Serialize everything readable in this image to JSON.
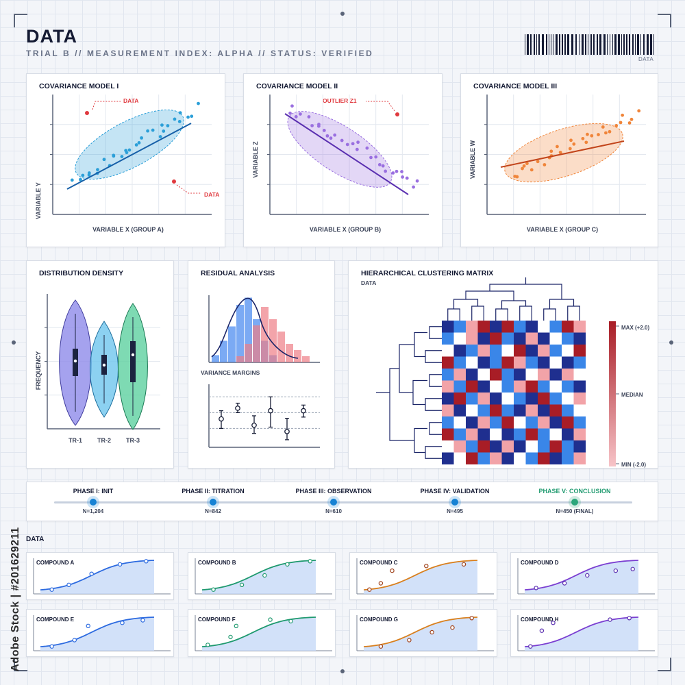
{
  "header": {
    "title": "DATA",
    "subtitle": "TRIAL B // MEASUREMENT INDEX: ALPHA // STATUS: VERIFIED",
    "barcode_label": "DATA"
  },
  "colors": {
    "blue": "#2b9fd8",
    "purple": "#7a4fc2",
    "orange": "#f0853a",
    "red": "#e0393e",
    "green": "#2aa67a",
    "navy": "#1a2467",
    "dark_red": "#a81d26"
  },
  "covariance_panels": [
    {
      "title": "COVARIANCE MODEL I",
      "chart_data": {
        "type": "scatter",
        "xlabel": "VARIABLE X (GROUP A)",
        "ylabel": "VARIABLE Y",
        "trend": "increasing",
        "annotations": [
          "DATA",
          "DATA"
        ]
      }
    },
    {
      "title": "COVARIANCE MODEL II",
      "chart_data": {
        "type": "scatter",
        "xlabel": "VARIABLE X (GROUP B)",
        "ylabel": "VARIABLE Z",
        "trend": "decreasing",
        "annotations": [
          "OUTLIER Z1"
        ]
      }
    },
    {
      "title": "COVARIANCE MODEL III",
      "chart_data": {
        "type": "scatter",
        "xlabel": "VARIABLE X (GROUP C)",
        "ylabel": "VARIABLE W",
        "trend": "increasing (weak)",
        "annotations": []
      }
    }
  ],
  "density_panel": {
    "title": "DISTRIBUTION DENSITY",
    "chart_data": {
      "type": "violin",
      "ylabel": "FREQUENCY",
      "categories": [
        "TR-1",
        "TR-2",
        "TR-3"
      ]
    }
  },
  "residual_panel": {
    "title": "RESIDUAL ANALYSIS",
    "subtitle": "VARIANCE MARGINS",
    "chart_data": {
      "type": "bar",
      "series": [
        {
          "color": "blue",
          "values": [
            1,
            3,
            5,
            8,
            9,
            6,
            3,
            1
          ]
        },
        {
          "color": "red",
          "values": [
            1,
            3,
            6,
            9,
            7,
            5,
            3,
            2,
            1
          ]
        }
      ],
      "error_bars": [
        {
          "mean": 0.45,
          "low": 0.3,
          "high": 0.58
        },
        {
          "mean": 0.62,
          "low": 0.55,
          "high": 0.7
        },
        {
          "mean": 0.35,
          "low": 0.22,
          "high": 0.5
        },
        {
          "mean": 0.58,
          "low": 0.32,
          "high": 0.8
        },
        {
          "mean": 0.25,
          "low": 0.12,
          "high": 0.46
        },
        {
          "mean": 0.58,
          "low": 0.48,
          "high": 0.67
        }
      ]
    }
  },
  "clustering_panel": {
    "title": "HIERARCHICAL CLUSTERING MATRIX",
    "subtitle": "DATA",
    "scale": {
      "max": "MAX (+2.0)",
      "median": "MEDIAN",
      "min": "MIN (-2.0)"
    },
    "chart_data": {
      "type": "heatmap",
      "rows": 12,
      "cols": 12,
      "range": [
        -2.0,
        2.0
      ],
      "values": [
        [
          -2,
          -1,
          1,
          2,
          -2,
          2,
          -1,
          -2,
          0,
          -1,
          2,
          1
        ],
        [
          -1,
          0,
          1,
          -2,
          2,
          -1,
          -2,
          1,
          -2,
          0,
          -1,
          -2
        ],
        [
          0,
          -2,
          -1,
          1,
          -1,
          0,
          2,
          -2,
          1,
          -1,
          0,
          2
        ],
        [
          2,
          -1,
          0,
          -2,
          -1,
          2,
          1,
          -1,
          -2,
          0,
          -2,
          -1
        ],
        [
          -1,
          1,
          -2,
          0,
          2,
          -1,
          -2,
          0,
          1,
          -2,
          1,
          0
        ],
        [
          1,
          -1,
          2,
          -2,
          0,
          -1,
          1,
          2,
          -1,
          0,
          -1,
          -2
        ],
        [
          -2,
          2,
          -1,
          1,
          -2,
          0,
          -1,
          -2,
          2,
          -1,
          0,
          1
        ],
        [
          1,
          -2,
          0,
          -1,
          2,
          -1,
          -2,
          1,
          -2,
          2,
          -1,
          0
        ],
        [
          -1,
          0,
          -2,
          1,
          -1,
          2,
          0,
          -1,
          1,
          -2,
          2,
          -1
        ],
        [
          2,
          -1,
          1,
          -2,
          0,
          -2,
          -1,
          2,
          -1,
          0,
          -2,
          1
        ],
        [
          0,
          1,
          -1,
          2,
          -2,
          1,
          -2,
          0,
          -1,
          2,
          -1,
          -2
        ],
        [
          -2,
          0,
          2,
          -1,
          1,
          -2,
          0,
          -1,
          2,
          -2,
          -1,
          1
        ]
      ]
    }
  },
  "phases": [
    {
      "label": "PHASE I: INIT",
      "count": "N=1,204"
    },
    {
      "label": "PHASE II: TITRATION",
      "count": "N=842"
    },
    {
      "label": "PHASE III: OBSERVATION",
      "count": "N=610"
    },
    {
      "label": "PHASE IV: VALIDATION",
      "count": "N=495"
    },
    {
      "label": "PHASE V: CONCLUSION",
      "count": "N=450 (FINAL)"
    }
  ],
  "compounds_section": {
    "label": "DATA",
    "compounds": [
      {
        "name": "COMPOUND A",
        "color": "blue",
        "points": [
          [
            0.1,
            0.05
          ],
          [
            0.25,
            0.2
          ],
          [
            0.45,
            0.55
          ],
          [
            0.7,
            0.85
          ],
          [
            0.93,
            0.95
          ]
        ]
      },
      {
        "name": "COMPOUND B",
        "color": "green",
        "points": [
          [
            0.1,
            0.05
          ],
          [
            0.35,
            0.2
          ],
          [
            0.55,
            0.5
          ],
          [
            0.75,
            0.85
          ],
          [
            0.95,
            0.95
          ]
        ]
      },
      {
        "name": "COMPOUND C",
        "color": "orange",
        "points": [
          [
            0.05,
            0.05
          ],
          [
            0.15,
            0.25
          ],
          [
            0.25,
            0.65
          ],
          [
            0.55,
            0.8
          ],
          [
            0.88,
            0.85
          ]
        ]
      },
      {
        "name": "COMPOUND D",
        "color": "purple",
        "points": [
          [
            0.1,
            0.1
          ],
          [
            0.35,
            0.25
          ],
          [
            0.55,
            0.5
          ],
          [
            0.8,
            0.65
          ],
          [
            0.95,
            0.7
          ]
        ]
      },
      {
        "name": "COMPOUND E",
        "color": "blue",
        "points": [
          [
            0.1,
            0.05
          ],
          [
            0.3,
            0.25
          ],
          [
            0.42,
            0.7
          ],
          [
            0.72,
            0.8
          ],
          [
            0.9,
            0.88
          ]
        ]
      },
      {
        "name": "COMPOUND F",
        "color": "green",
        "points": [
          [
            0.05,
            0.1
          ],
          [
            0.25,
            0.35
          ],
          [
            0.6,
            0.9
          ],
          [
            0.78,
            0.85
          ],
          [
            0.3,
            0.7
          ]
        ]
      },
      {
        "name": "COMPOUND G",
        "color": "orange",
        "points": [
          [
            0.15,
            0.05
          ],
          [
            0.4,
            0.25
          ],
          [
            0.6,
            0.5
          ],
          [
            0.78,
            0.65
          ],
          [
            0.95,
            0.95
          ]
        ]
      },
      {
        "name": "COMPOUND H",
        "color": "purple",
        "points": [
          [
            0.05,
            0.05
          ],
          [
            0.15,
            0.55
          ],
          [
            0.25,
            0.8
          ],
          [
            0.75,
            0.9
          ],
          [
            0.92,
            0.95
          ]
        ]
      }
    ]
  },
  "watermark": "Adobe Stock | #201629211"
}
